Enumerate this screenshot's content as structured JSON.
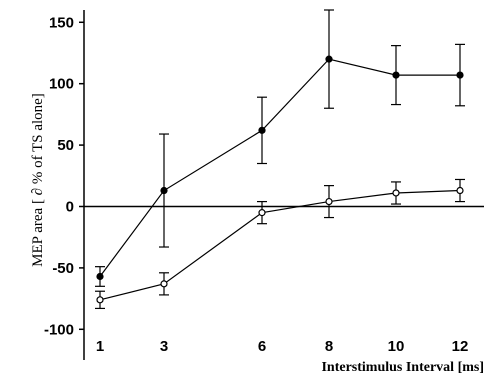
{
  "chart_data": {
    "type": "line",
    "xlabel": "Interstimulus Interval [ms]",
    "ylabel": "MEP area [ ∂ % of TS alone]",
    "x": [
      1,
      3,
      6,
      8,
      10,
      12
    ],
    "x_tick_labels": [
      "1",
      "3",
      "6",
      "8",
      "10",
      "12"
    ],
    "y_ticks": [
      -100,
      -50,
      0,
      50,
      100,
      150
    ],
    "y_tick_labels": [
      "-100",
      "-50",
      "0",
      "50",
      "100",
      "150"
    ],
    "ylim": [
      -125,
      160
    ],
    "zero_line": true,
    "grid": false,
    "series": [
      {
        "marker": "filled",
        "values": [
          -57,
          13,
          62,
          120,
          107,
          107
        ],
        "error": [
          8,
          46,
          27,
          40,
          24,
          25
        ]
      },
      {
        "marker": "open",
        "values": [
          -76,
          -63,
          -5,
          4,
          11,
          13
        ],
        "error": [
          7,
          9,
          9,
          13,
          9,
          9
        ]
      }
    ]
  }
}
